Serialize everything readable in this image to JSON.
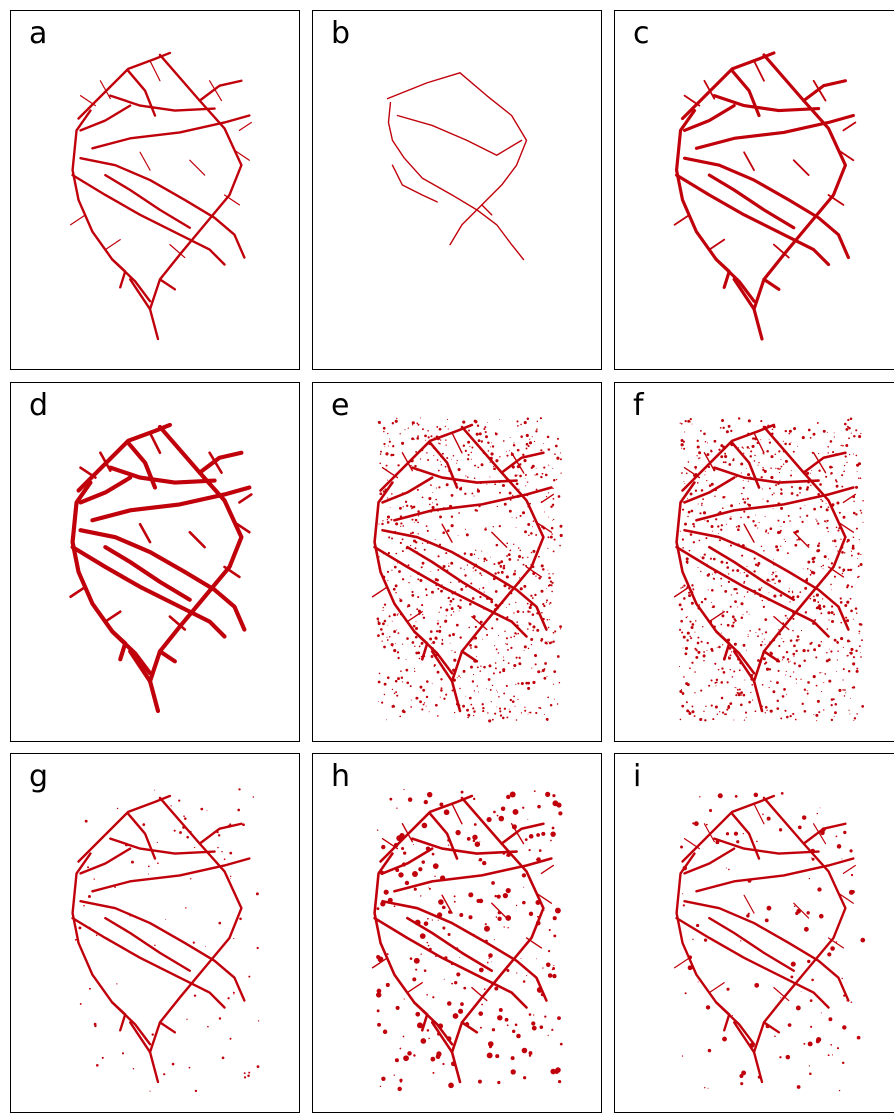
{
  "figure": {
    "root_color": "#c0000a",
    "panels": [
      {
        "label": "a",
        "variant": "medium-branching"
      },
      {
        "label": "b",
        "variant": "sparse-thin"
      },
      {
        "label": "c",
        "variant": "medium-thick"
      },
      {
        "label": "d",
        "variant": "thick"
      },
      {
        "label": "e",
        "variant": "dense-speckled"
      },
      {
        "label": "f",
        "variant": "dense-speckled"
      },
      {
        "label": "g",
        "variant": "sparse-dotted"
      },
      {
        "label": "h",
        "variant": "dense-blobs"
      },
      {
        "label": "i",
        "variant": "medium-blobs"
      }
    ]
  }
}
